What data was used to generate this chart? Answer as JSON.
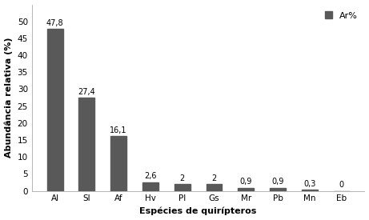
{
  "categories": [
    "Al",
    "Sl",
    "Af",
    "Hv",
    "Pl",
    "Gs",
    "Mr",
    "Pb",
    "Mn",
    "Eb"
  ],
  "values": [
    47.8,
    27.4,
    16.1,
    2.6,
    2.0,
    2.0,
    0.9,
    0.9,
    0.3,
    0.0
  ],
  "labels": [
    "47,8",
    "27,4",
    "16,1",
    "2,6",
    "2",
    "2",
    "0,9",
    "0,9",
    "0,3",
    "0"
  ],
  "bar_color": "#595959",
  "ylabel": "Abundância relativa (%)",
  "xlabel": "Espécies de quirípteros",
  "ylim": [
    0,
    55
  ],
  "yticks": [
    0,
    5,
    10,
    15,
    20,
    25,
    30,
    35,
    40,
    45,
    50
  ],
  "legend_label": "Ar%",
  "background_color": "#ffffff",
  "bar_width": 0.5,
  "label_fontsize": 7,
  "axis_label_fontsize": 8,
  "tick_fontsize": 7.5,
  "legend_fontsize": 8
}
